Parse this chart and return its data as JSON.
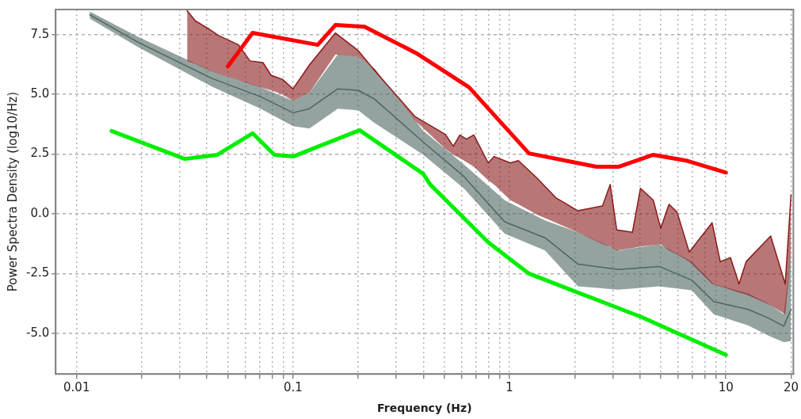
{
  "chart_data": {
    "type": "line",
    "xlabel": "Frequency (Hz)",
    "ylabel": "Power Spectra Density (log10/Hz)",
    "log": "x",
    "xlim": [
      0.008,
      20.5
    ],
    "ylim": [
      -6.7,
      8.55
    ],
    "xticks": [
      0.01,
      {
        "value": 0.02,
        "label": null
      },
      {
        "value": 0.03,
        "label": null
      },
      {
        "value": 0.04,
        "label": null
      },
      {
        "value": 0.05,
        "label": null
      },
      {
        "value": 0.06,
        "label": null
      },
      {
        "value": 0.07,
        "label": null
      },
      {
        "value": 0.08,
        "label": null
      },
      {
        "value": 0.09,
        "label": null
      },
      0.1,
      {
        "value": 0.2,
        "label": null
      },
      {
        "value": 0.3,
        "label": null
      },
      {
        "value": 0.4,
        "label": null
      },
      {
        "value": 0.5,
        "label": null
      },
      {
        "value": 0.6,
        "label": null
      },
      {
        "value": 0.7,
        "label": null
      },
      {
        "value": 0.8,
        "label": null
      },
      {
        "value": 0.9,
        "label": null
      },
      1,
      {
        "value": 2,
        "label": null
      },
      {
        "value": 3,
        "label": null
      },
      {
        "value": 4,
        "label": null
      },
      {
        "value": 5,
        "label": null
      },
      {
        "value": 6,
        "label": null
      },
      {
        "value": 7,
        "label": null
      },
      {
        "value": 8,
        "label": null
      },
      {
        "value": 9,
        "label": null
      },
      10,
      20
    ],
    "yticks": [
      {
        "value": -5,
        "label": "-5.0"
      },
      -2.5,
      {
        "value": 0,
        "label": "0.0"
      },
      2.5,
      {
        "value": 5,
        "label": "5.0"
      },
      7.5
    ],
    "grid": true,
    "legend": false,
    "marker": "none",
    "line_style": "solid",
    "series": [
      {
        "color": "#8b1a1a",
        "x": [
          0.0324,
          0.0354,
          0.041,
          0.0451,
          0.056,
          0.0632,
          0.0726,
          0.0791,
          0.0893,
          0.1,
          0.119,
          0.157,
          0.2,
          0.238,
          0.366,
          0.505,
          0.55,
          0.59,
          0.632,
          0.684,
          0.798,
          0.849,
          1.01,
          1.1,
          1.34,
          1.64,
          2.07,
          2.69,
          2.92,
          3.13,
          3.7,
          4.03,
          4.62,
          5.0,
          5.46,
          5.95,
          6.77,
          8.63,
          9.42,
          10.5,
          11.5,
          12.4,
          16.1,
          18.8,
          20
        ],
        "values": [
          8.5,
          8.07,
          7.73,
          7.47,
          7.07,
          6.4,
          6.33,
          5.8,
          5.63,
          5.23,
          6.23,
          7.57,
          6.83,
          6.0,
          4.07,
          3.33,
          2.83,
          3.3,
          3.13,
          3.3,
          2.13,
          2.4,
          2.13,
          2.23,
          1.5,
          0.67,
          0.13,
          0.33,
          1.23,
          -0.67,
          -0.77,
          1.07,
          0.57,
          -0.6,
          0.4,
          0.07,
          -1.6,
          -0.37,
          -2.0,
          -1.83,
          -2.93,
          -2.0,
          -0.93,
          -2.93,
          0.8
        ],
        "upper": [
          8.5,
          8.07,
          7.73,
          7.47,
          7.07,
          6.4,
          6.33,
          5.8,
          5.63,
          5.23,
          6.23,
          7.57,
          6.83,
          6.0,
          4.07,
          3.33,
          2.83,
          3.3,
          3.13,
          3.3,
          2.13,
          2.4,
          2.13,
          2.23,
          1.5,
          0.67,
          0.13,
          0.33,
          1.23,
          -0.67,
          -0.77,
          1.07,
          0.57,
          -0.6,
          0.4,
          0.07,
          -1.6,
          -0.37,
          -2.0,
          -1.83,
          -2.93,
          -2.0,
          -0.93,
          -2.93,
          0.8
        ],
        "lower": [
          6.4,
          6.27,
          6.0,
          5.87,
          5.6,
          5.43,
          5.27,
          5.17,
          5.0,
          4.73,
          5.07,
          6.67,
          6.57,
          6.07,
          3.9,
          2.73,
          2.47,
          2.33,
          2.17,
          1.97,
          1.4,
          1.23,
          0.57,
          0.4,
          -0.03,
          -0.37,
          -0.77,
          -1.27,
          -1.37,
          -1.53,
          -1.43,
          -1.37,
          -1.3,
          -1.27,
          -1.53,
          -1.7,
          -2.0,
          -2.93,
          -3.03,
          -3.17,
          -3.3,
          -3.37,
          -3.83,
          -4.2,
          -1.67
        ]
      },
      {
        "color": "#4d6660",
        "x": [
          0.0115,
          0.0193,
          0.0421,
          0.0708,
          0.1,
          0.119,
          0.161,
          0.2,
          0.238,
          0.4,
          0.615,
          0.95,
          1.46,
          2.07,
          3.19,
          4.92,
          6.95,
          8.79,
          12.7,
          15.8,
          18.5,
          20
        ],
        "values": [
          8.33,
          7.17,
          5.67,
          4.9,
          4.23,
          4.4,
          5.23,
          5.17,
          4.8,
          3.0,
          1.57,
          -0.33,
          -1.0,
          -2.1,
          -2.33,
          -2.2,
          -2.77,
          -3.67,
          -4.0,
          -4.37,
          -4.7,
          -4.0
        ],
        "upper": [
          8.47,
          7.4,
          5.97,
          5.3,
          4.73,
          5.07,
          6.67,
          6.57,
          6.07,
          3.47,
          2.07,
          0.57,
          -0.27,
          -0.77,
          -1.53,
          -1.27,
          -2.0,
          -2.93,
          -3.33,
          -3.77,
          -4.2,
          -1.67
        ],
        "lower": [
          8.17,
          6.97,
          5.33,
          4.4,
          3.67,
          3.57,
          4.4,
          4.33,
          3.8,
          2.47,
          1.07,
          -0.83,
          -1.53,
          -3.03,
          -3.17,
          -3.03,
          -3.2,
          -4.2,
          -4.67,
          -5.1,
          -5.37,
          -5.33
        ]
      },
      {
        "color": "#ff0000",
        "x": [
          0.05,
          0.065,
          0.13,
          0.157,
          0.214,
          0.37,
          0.65,
          1.23,
          2.52,
          3.19,
          4.62,
          6.54,
          10
        ],
        "values": [
          6.17,
          7.57,
          7.07,
          7.9,
          7.83,
          6.73,
          5.3,
          2.53,
          1.97,
          1.97,
          2.47,
          2.23,
          1.73
        ]
      },
      {
        "color": "#00ee00",
        "x": [
          0.0145,
          0.0316,
          0.0447,
          0.065,
          0.082,
          0.1,
          0.203,
          0.4,
          0.43,
          0.8,
          1.23,
          1.95,
          4.03,
          10
        ],
        "values": [
          3.47,
          2.3,
          2.47,
          3.37,
          2.47,
          2.4,
          3.5,
          1.67,
          1.23,
          -1.2,
          -2.5,
          -3.2,
          -4.3,
          -5.9
        ]
      }
    ]
  }
}
